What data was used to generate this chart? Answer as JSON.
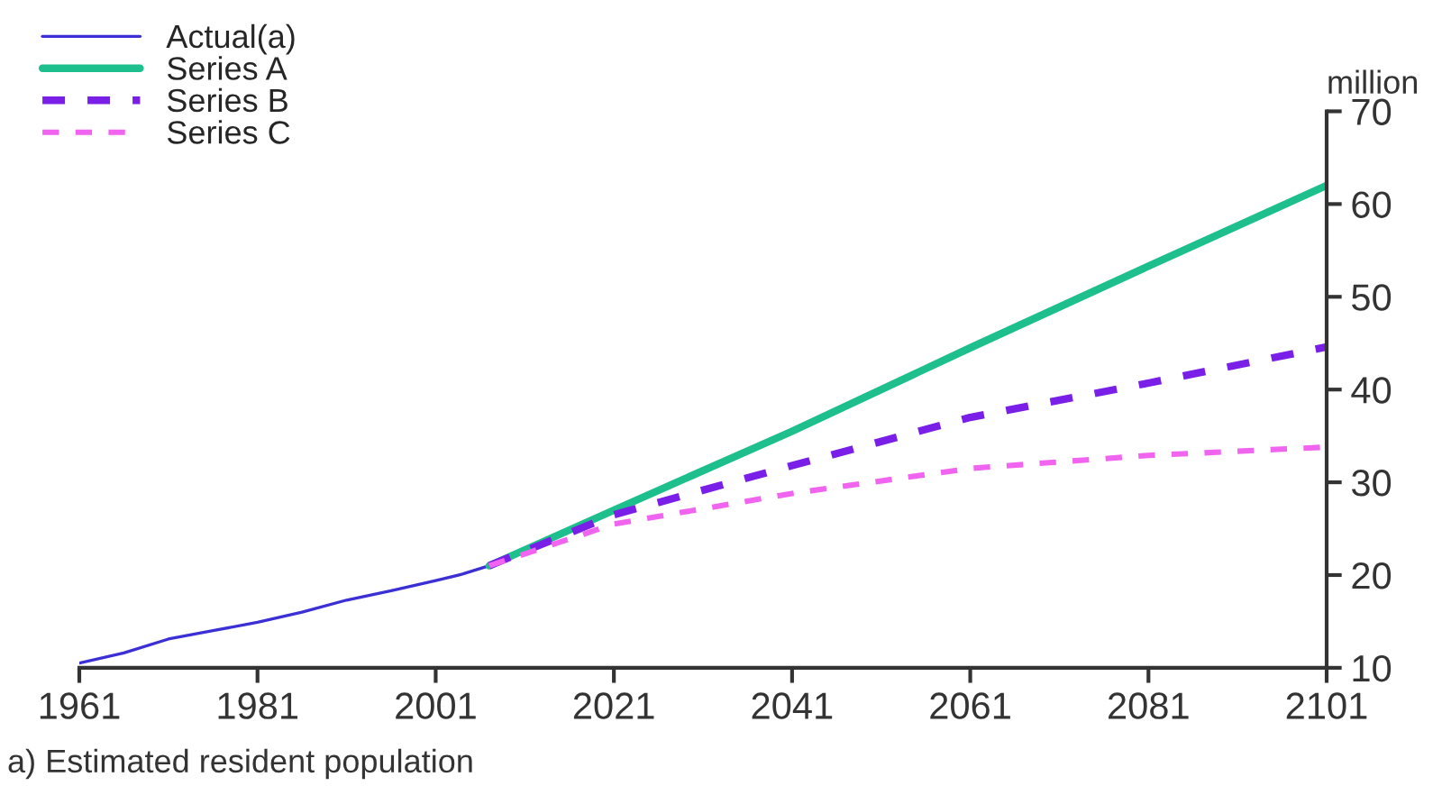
{
  "chart_data": {
    "type": "line",
    "ylabel": "million",
    "annotations": [
      "a) Estimated resident population"
    ],
    "xlim": [
      1961,
      2101
    ],
    "xticks": [
      1961,
      1981,
      2001,
      2021,
      2041,
      2061,
      2081,
      2101
    ],
    "ylim": [
      10,
      70
    ],
    "yticks": [
      10,
      20,
      30,
      40,
      50,
      60,
      70
    ],
    "grid": false,
    "legend": "top left",
    "series": [
      {
        "name": "Actual(a)",
        "color": "#3b2fd6",
        "line_style": "solid",
        "x": [
          1961,
          1966,
          1971,
          1976,
          1981,
          1986,
          1991,
          1996,
          2001,
          2004,
          2007
        ],
        "values": [
          10.5,
          11.6,
          13.1,
          14.0,
          14.9,
          16.0,
          17.3,
          18.3,
          19.4,
          20.1,
          21.0
        ]
      },
      {
        "name": "Series A",
        "color": "#1dbf8c",
        "line_style": "solid",
        "x": [
          2007,
          2021,
          2041,
          2061,
          2081,
          2101
        ],
        "values": [
          21.0,
          27.0,
          35.5,
          44.5,
          53.3,
          62.0
        ]
      },
      {
        "name": "Series B",
        "color": "#7a1fe8",
        "line_style": "dashed",
        "x": [
          2007,
          2021,
          2041,
          2061,
          2081,
          2101
        ],
        "values": [
          21.0,
          26.5,
          31.8,
          37.0,
          40.7,
          44.6
        ]
      },
      {
        "name": "Series C",
        "color": "#f064f0",
        "line_style": "dashed",
        "x": [
          2007,
          2021,
          2041,
          2061,
          2081,
          2101
        ],
        "values": [
          21.0,
          25.5,
          28.8,
          31.5,
          32.9,
          33.8
        ]
      }
    ]
  }
}
